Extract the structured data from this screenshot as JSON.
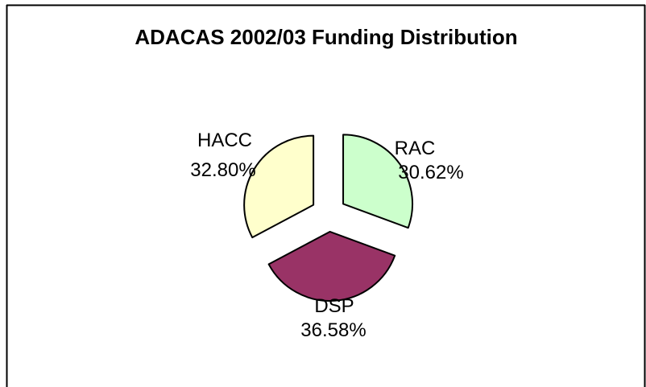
{
  "chart_data": {
    "type": "pie",
    "title": "ADACAS 2002/03 Funding Distribution",
    "exploded": true,
    "start_angle_deg": 0,
    "direction": "clockwise",
    "slices": [
      {
        "name": "RAC",
        "value": 30.62,
        "label": "30.62%",
        "color": "#ccffcc"
      },
      {
        "name": "DSP",
        "value": 36.58,
        "label": "36.58%",
        "color": "#993366"
      },
      {
        "name": "HACC",
        "value": 32.8,
        "label": "32.80%",
        "color": "#ffffcc"
      }
    ],
    "colors": {
      "outline": "#000000",
      "background": "#ffffff"
    }
  }
}
